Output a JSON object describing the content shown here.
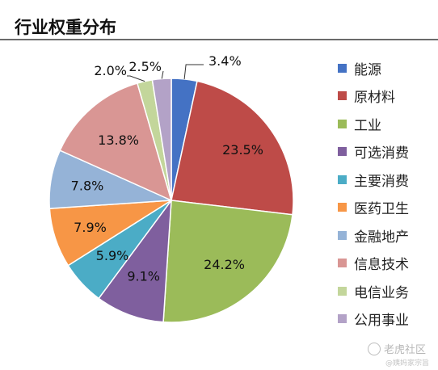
{
  "header": {
    "title": "行业权重分布"
  },
  "chart_data": {
    "type": "pie",
    "title": "行业权重分布",
    "categories": [
      "能源",
      "原材料",
      "工业",
      "可选消费",
      "主要消费",
      "医药卫生",
      "金融地产",
      "信息技术",
      "电信业务",
      "公用事业"
    ],
    "values": [
      3.4,
      23.5,
      24.2,
      9.1,
      5.9,
      7.9,
      7.8,
      13.8,
      2.0,
      2.5
    ],
    "labels": [
      "3.4%",
      "23.5%",
      "24.2%",
      "9.1%",
      "5.9%",
      "7.9%",
      "7.8%",
      "13.8%",
      "2.0%",
      "2.5%"
    ],
    "colors": [
      "#4472C4",
      "#BE4B48",
      "#9BBB59",
      "#7F5F9E",
      "#4BACC6",
      "#F79646",
      "#95B3D7",
      "#D99694",
      "#C3D69B",
      "#B3A2C7"
    ],
    "start_angle_deg": 0,
    "direction": "clockwise",
    "legend_position": "right"
  },
  "watermark": {
    "brand": "老虎社区",
    "sub": "@姨妈家宗旨"
  }
}
